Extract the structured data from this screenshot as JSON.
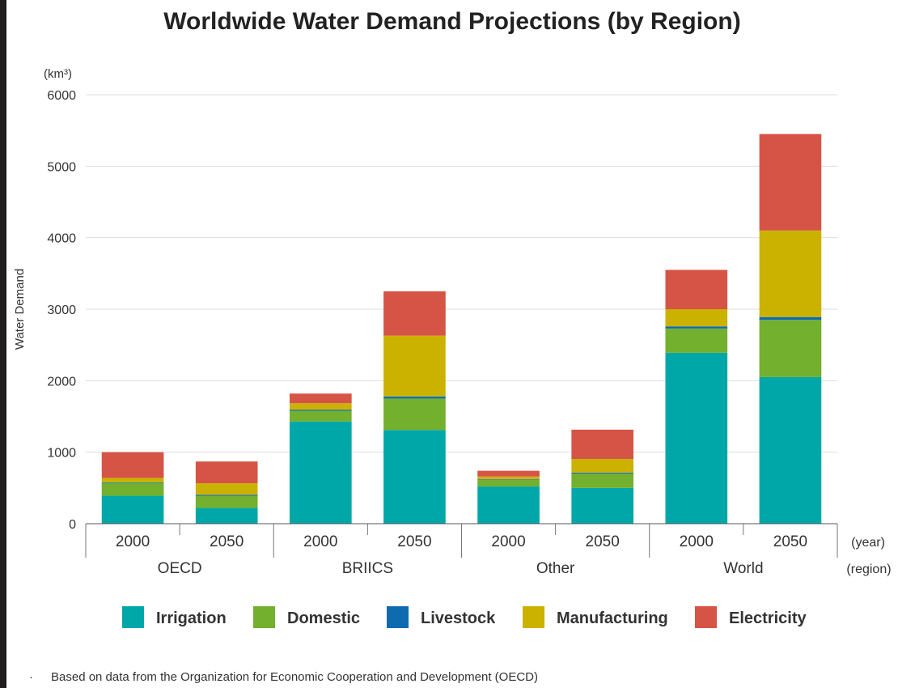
{
  "chart_data": {
    "type": "bar",
    "stacked": true,
    "title": "Worldwide Water Demand Projections (by Region)",
    "ylabel": "Water Demand",
    "yunit": "(km³)",
    "ylim": [
      0,
      6000
    ],
    "yticks": [
      0,
      1000,
      2000,
      3000,
      4000,
      5000,
      6000
    ],
    "grid": true,
    "x_axis_label": "(year)",
    "group_axis_label": "(region)",
    "groups": [
      {
        "name": "OECD",
        "categories": [
          "2000",
          "2050"
        ]
      },
      {
        "name": "BRIICS",
        "categories": [
          "2000",
          "2050"
        ]
      },
      {
        "name": "Other",
        "categories": [
          "2000",
          "2050"
        ]
      },
      {
        "name": "World",
        "categories": [
          "2000",
          "2050"
        ]
      }
    ],
    "series": [
      {
        "name": "Irrigation",
        "color": "#00a7a8",
        "values": [
          390,
          220,
          1430,
          1310,
          520,
          500,
          2390,
          2050
        ]
      },
      {
        "name": "Domestic",
        "color": "#72b02e",
        "values": [
          180,
          170,
          150,
          440,
          90,
          200,
          340,
          800
        ]
      },
      {
        "name": "Livestock",
        "color": "#0f6bb0",
        "values": [
          10,
          15,
          15,
          30,
          10,
          15,
          30,
          40
        ]
      },
      {
        "name": "Manufacturing",
        "color": "#ccb200",
        "values": [
          60,
          160,
          90,
          850,
          40,
          190,
          240,
          1210
        ]
      },
      {
        "name": "Electricity",
        "color": "#d65445",
        "values": [
          360,
          305,
          135,
          620,
          80,
          410,
          550,
          1350
        ]
      }
    ],
    "legend_position": "bottom"
  },
  "footnote": {
    "bullet": "·",
    "text": "Based on data from the Organization for Economic Cooperation and Development (OECD)"
  }
}
